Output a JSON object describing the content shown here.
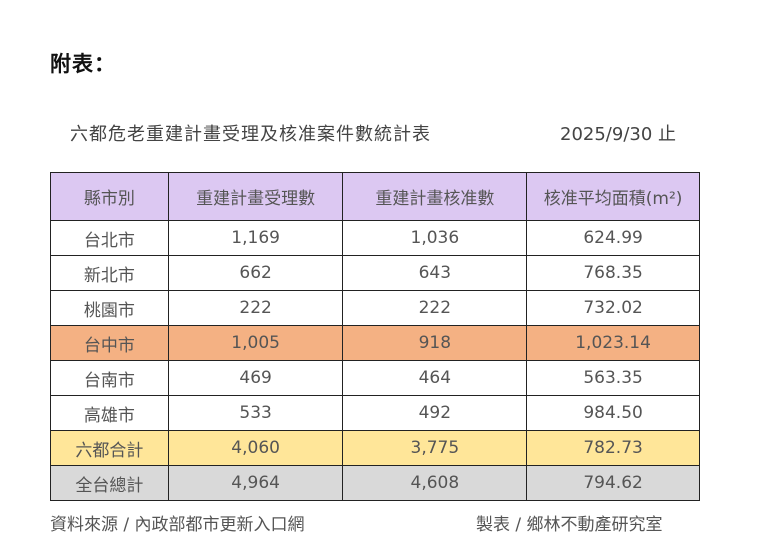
{
  "heading": "附表：",
  "title": "六都危老重建計畫受理及核准案件數統計表",
  "date": "2025/9/30 止",
  "table": {
    "headers": [
      "縣市別",
      "重建計畫受理數",
      "重建計畫核准數",
      "核准平均面積(m²)"
    ],
    "rows": [
      {
        "city": "台北市",
        "accepted": "1,169",
        "approved": "1,036",
        "avg_area": "624.99"
      },
      {
        "city": "新北市",
        "accepted": "662",
        "approved": "643",
        "avg_area": "768.35"
      },
      {
        "city": "桃園市",
        "accepted": "222",
        "approved": "222",
        "avg_area": "732.02"
      },
      {
        "city": "台中市",
        "accepted": "1,005",
        "approved": "918",
        "avg_area": "1,023.14"
      },
      {
        "city": "台南市",
        "accepted": "469",
        "approved": "464",
        "avg_area": "563.35"
      },
      {
        "city": "高雄市",
        "accepted": "533",
        "approved": "492",
        "avg_area": "984.50"
      },
      {
        "city": "六都合計",
        "accepted": "4,060",
        "approved": "3,775",
        "avg_area": "782.73"
      },
      {
        "city": "全台總計",
        "accepted": "4,964",
        "approved": "4,608",
        "avg_area": "794.62"
      }
    ]
  },
  "colors": {
    "header": "#dcc8f2",
    "highlight_taichung": "#f4b183",
    "six_total": "#ffe699",
    "national_total": "#d9d9d9"
  },
  "footer": {
    "source": "資料來源 / 內政部都市更新入口網",
    "credit": "製表 / 鄉林不動產研究室"
  }
}
